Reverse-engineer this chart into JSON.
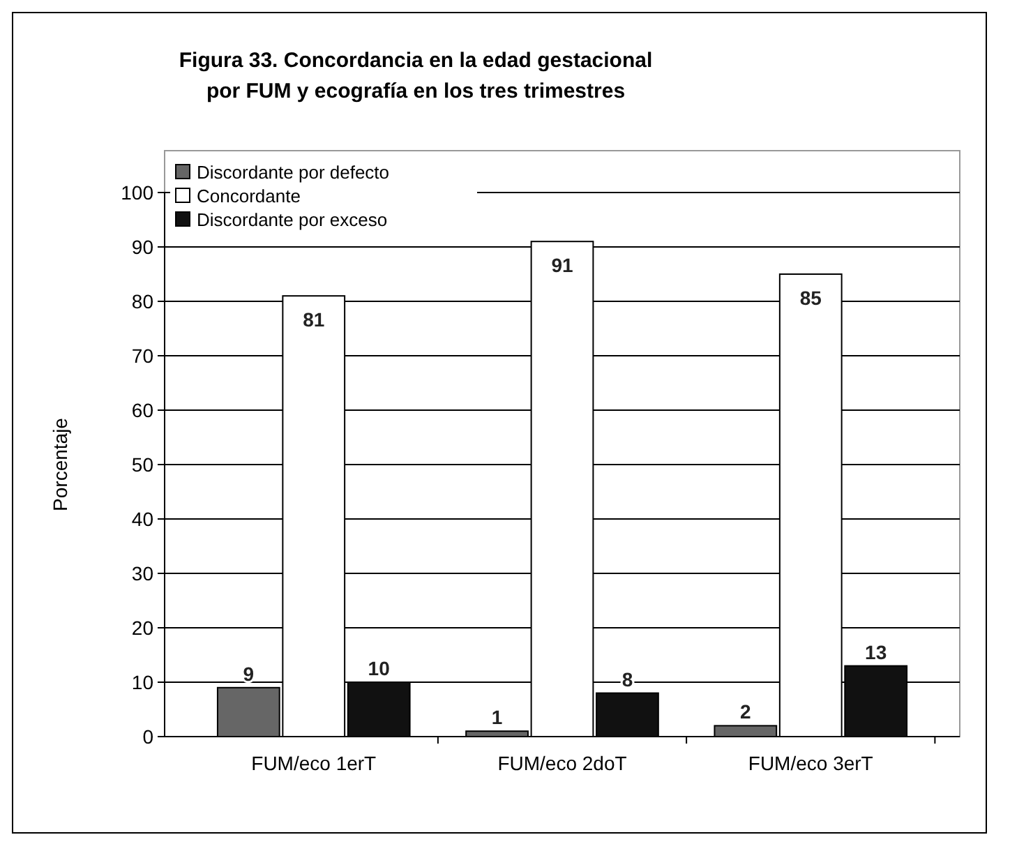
{
  "chart_data": {
    "type": "bar",
    "title": "Figura 33. Concordancia en la edad gestacional por FUM y ecografía en los tres trimestres",
    "ylabel": "Porcentaje",
    "categories": [
      "FUM/eco 1erT",
      "FUM/eco 2doT",
      "FUM/eco 3erT"
    ],
    "series": [
      {
        "name": "Discordante por defecto",
        "color": "#666666",
        "values": [
          9,
          1,
          2
        ]
      },
      {
        "name": "Concordante",
        "color": "#ffffff",
        "values": [
          81,
          91,
          85
        ]
      },
      {
        "name": "Discordante por exceso",
        "color": "#111111",
        "values": [
          10,
          8,
          13
        ]
      }
    ],
    "ylim": [
      0,
      100
    ],
    "yticks": [
      0,
      10,
      20,
      30,
      40,
      50,
      60,
      70,
      80,
      90,
      100
    ],
    "grid": "y",
    "legend": "top left",
    "data_labels": true
  }
}
